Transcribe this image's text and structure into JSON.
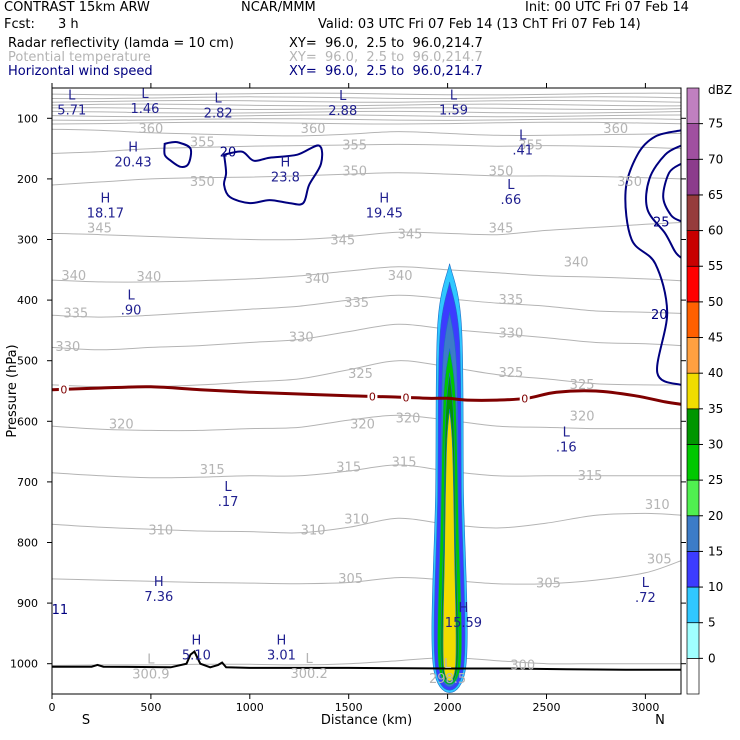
{
  "header": {
    "model": "CONTRAST 15km ARW",
    "org": "NCAR/MMM",
    "init": "Init: 00 UTC Fri 07 Feb 14",
    "fcst_label": "Fcst:",
    "fcst_value": "3 h",
    "valid": "Valid: 03 UTC Fri 07 Feb 14 (13 ChT Fri 07 Feb 14)",
    "fields": [
      {
        "name": "Radar reflectivity (lamda = 10 cm)",
        "xy": "XY=  96.0,  2.5 to  96.0,214.7",
        "color": "#000000"
      },
      {
        "name": "Potential temperature",
        "xy": "XY=  96.0,  2.5 to  96.0,214.7",
        "color": "#b4b4b4"
      },
      {
        "name": "Horizontal wind speed",
        "xy": "XY=  96.0,  2.5 to  96.0,214.7",
        "color": "#000080"
      }
    ]
  },
  "colors": {
    "theta": "#b4b4b4",
    "wind": "#00007f",
    "freezing": "#7f0000",
    "terrain": "#000000",
    "text_blue": "#1f1f8f"
  },
  "chart_data": {
    "type": "cross-section",
    "xlabel": "Distance (km)",
    "ylabel": "Pressure (hPa)",
    "xlim": [
      0,
      3180
    ],
    "ylim": [
      1050,
      50
    ],
    "x_ticks": [
      0,
      500,
      1000,
      1500,
      2000,
      2500,
      3000
    ],
    "y_ticks": [
      100,
      200,
      300,
      400,
      500,
      600,
      700,
      800,
      900,
      1000
    ],
    "end_labels": {
      "left": "S",
      "right": "N"
    },
    "colorbar": {
      "unit": "dBZ",
      "levels": [
        0,
        5,
        10,
        15,
        20,
        25,
        30,
        35,
        40,
        45,
        50,
        55,
        60,
        65,
        70,
        75
      ],
      "colors": [
        "#ffffff",
        "#a0ffff",
        "#30c8ff",
        "#3c3cff",
        "#3c7cc8",
        "#50f050",
        "#00c800",
        "#009600",
        "#f0dc00",
        "#ffa040",
        "#ff6000",
        "#ff0000",
        "#c80000",
        "#963c3c",
        "#8c3c8c",
        "#a050a0",
        "#c080c0"
      ]
    },
    "theta_contours": [
      {
        "value": 300,
        "p": [
          1003,
          1002,
          1002,
          1001,
          1001,
          1002,
          1000,
          995,
          990,
          995,
          1000,
          1000,
          1000,
          1000
        ]
      },
      {
        "value": 305,
        "p": [
          860,
          862,
          864,
          866,
          867,
          868,
          866,
          858,
          862,
          868,
          868,
          862,
          850,
          830
        ]
      },
      {
        "value": 310,
        "p": [
          770,
          775,
          778,
          781,
          782,
          784,
          775,
          760,
          770,
          776,
          768,
          755,
          752,
          755
        ]
      },
      {
        "value": 315,
        "p": [
          685,
          690,
          693,
          692,
          690,
          690,
          682,
          672,
          682,
          690,
          690,
          690,
          690,
          690
        ]
      },
      {
        "value": 320,
        "p": [
          608,
          613,
          615,
          615,
          612,
          610,
          598,
          590,
          598,
          608,
          610,
          612,
          612,
          612
        ]
      },
      {
        "value": 325,
        "p": [
          540,
          543,
          543,
          540,
          535,
          530,
          515,
          500,
          510,
          523,
          530,
          538,
          540,
          540
        ]
      },
      {
        "value": 330,
        "p": [
          478,
          482,
          478,
          475,
          470,
          465,
          452,
          440,
          448,
          455,
          462,
          470,
          472,
          475
        ]
      },
      {
        "value": 335,
        "p": [
          425,
          428,
          425,
          420,
          415,
          410,
          400,
          392,
          398,
          405,
          410,
          418,
          420,
          422
        ]
      },
      {
        "value": 340,
        "p": [
          367,
          370,
          370,
          368,
          365,
          360,
          352,
          345,
          350,
          355,
          360,
          362,
          365,
          368
        ]
      },
      {
        "value": 345,
        "p": [
          290,
          292,
          295,
          298,
          300,
          300,
          295,
          288,
          290,
          292,
          285,
          280,
          275,
          272
        ]
      },
      {
        "value": 350,
        "p": [
          210,
          205,
          200,
          198,
          197,
          195,
          192,
          190,
          192,
          195,
          195,
          196,
          198,
          200
        ]
      },
      {
        "value": 355,
        "p": [
          158,
          155,
          150,
          148,
          146,
          145,
          144,
          143,
          144,
          146,
          145,
          146,
          148,
          150
        ]
      },
      {
        "value": 360,
        "p": [
          118,
          120,
          124,
          126,
          128,
          129,
          126,
          122,
          125,
          128,
          128,
          127,
          126,
          125
        ]
      }
    ],
    "theta_grid_x": [
      0,
      250,
      500,
      750,
      1000,
      1250,
      1500,
      1750,
      2000,
      2250,
      2500,
      2750,
      3000,
      3180
    ],
    "stratosphere_levels": [
      60,
      66,
      72,
      78,
      84,
      90,
      96,
      102,
      108
    ],
    "theta_labels": [
      {
        "text": "360",
        "x": 500,
        "p": 118
      },
      {
        "text": "355",
        "x": 760,
        "p": 140
      },
      {
        "text": "360",
        "x": 1320,
        "p": 118
      },
      {
        "text": "355",
        "x": 1530,
        "p": 145
      },
      {
        "text": "355",
        "x": 2420,
        "p": 145
      },
      {
        "text": "360",
        "x": 2850,
        "p": 118
      },
      {
        "text": "350",
        "x": 760,
        "p": 205
      },
      {
        "text": "350",
        "x": 1530,
        "p": 188
      },
      {
        "text": "350",
        "x": 2270,
        "p": 188
      },
      {
        "text": "350",
        "x": 2920,
        "p": 205
      },
      {
        "text": "345",
        "x": 240,
        "p": 282
      },
      {
        "text": "345",
        "x": 1470,
        "p": 302
      },
      {
        "text": "345",
        "x": 1810,
        "p": 292
      },
      {
        "text": "345",
        "x": 2270,
        "p": 282
      },
      {
        "text": "340",
        "x": 110,
        "p": 360
      },
      {
        "text": "340",
        "x": 490,
        "p": 362
      },
      {
        "text": "340",
        "x": 1340,
        "p": 365
      },
      {
        "text": "340",
        "x": 1760,
        "p": 360
      },
      {
        "text": "340",
        "x": 2650,
        "p": 338
      },
      {
        "text": "335",
        "x": 120,
        "p": 422
      },
      {
        "text": "335",
        "x": 1540,
        "p": 405
      },
      {
        "text": "335",
        "x": 2320,
        "p": 400
      },
      {
        "text": "330",
        "x": 80,
        "p": 477
      },
      {
        "text": "330",
        "x": 1260,
        "p": 462
      },
      {
        "text": "330",
        "x": 2320,
        "p": 455
      },
      {
        "text": "325",
        "x": 1560,
        "p": 522
      },
      {
        "text": "325",
        "x": 2320,
        "p": 520
      },
      {
        "text": "325",
        "x": 2680,
        "p": 540
      },
      {
        "text": "320",
        "x": 350,
        "p": 605
      },
      {
        "text": "320",
        "x": 1570,
        "p": 605
      },
      {
        "text": "320",
        "x": 1800,
        "p": 595
      },
      {
        "text": "320",
        "x": 2680,
        "p": 592
      },
      {
        "text": "315",
        "x": 810,
        "p": 680
      },
      {
        "text": "315",
        "x": 1500,
        "p": 676
      },
      {
        "text": "315",
        "x": 1780,
        "p": 668
      },
      {
        "text": "315",
        "x": 2720,
        "p": 690
      },
      {
        "text": "310",
        "x": 550,
        "p": 780
      },
      {
        "text": "310",
        "x": 1320,
        "p": 780
      },
      {
        "text": "310",
        "x": 1540,
        "p": 762
      },
      {
        "text": "310",
        "x": 3060,
        "p": 738
      },
      {
        "text": "305",
        "x": 1510,
        "p": 860
      },
      {
        "text": "305",
        "x": 2510,
        "p": 868
      },
      {
        "text": "305",
        "x": 3070,
        "p": 828
      },
      {
        "text": "300",
        "x": 2380,
        "p": 1003
      }
    ],
    "wind_labels": [
      {
        "text": "20",
        "x": 890,
        "p": 155
      },
      {
        "text": "25",
        "x": 3080,
        "p": 270
      },
      {
        "text": "20",
        "x": 3070,
        "p": 423
      },
      {
        "text": "11",
        "x": 40,
        "p": 910
      }
    ],
    "freezing_level": {
      "label": "0",
      "x": [
        0,
        250,
        500,
        750,
        1000,
        1250,
        1500,
        1750,
        1900,
        2000,
        2100,
        2250,
        2400,
        2550,
        2750,
        2950,
        3100,
        3180
      ],
      "p": [
        548,
        545,
        543,
        548,
        552,
        555,
        558,
        560,
        562,
        562,
        565,
        565,
        562,
        552,
        550,
        558,
        568,
        572
      ],
      "label_x": [
        60,
        1620,
        1790,
        2390
      ]
    },
    "terrain": {
      "x": [
        0,
        200,
        230,
        260,
        600,
        680,
        700,
        720,
        750,
        800,
        840,
        860,
        880,
        1000,
        1500,
        2000,
        2300,
        2600,
        2900,
        3180
      ],
      "p": [
        1005,
        1005,
        1002,
        1005,
        1006,
        1000,
        985,
        980,
        1000,
        1006,
        1002,
        998,
        1006,
        1007,
        1007,
        1008,
        1008,
        1009,
        1010,
        1010
      ]
    },
    "pressure_centers": [
      {
        "type": "L",
        "value": "5.71",
        "x": 100,
        "p": 72
      },
      {
        "type": "L",
        "value": "1.46",
        "x": 470,
        "p": 70
      },
      {
        "type": "L",
        "value": "2.82",
        "x": 840,
        "p": 77
      },
      {
        "type": "L",
        "value": "2.88",
        "x": 1470,
        "p": 73
      },
      {
        "type": "L",
        "value": "1.59",
        "x": 2030,
        "p": 72
      },
      {
        "type": "L",
        "value": ".41",
        "x": 2380,
        "p": 138
      },
      {
        "type": "H",
        "value": "20.43",
        "x": 410,
        "p": 158
      },
      {
        "type": "H",
        "value": "23.8",
        "x": 1180,
        "p": 183
      },
      {
        "type": "L",
        "value": ".66",
        "x": 2320,
        "p": 220
      },
      {
        "type": "H",
        "value": "18.17",
        "x": 270,
        "p": 242
      },
      {
        "type": "H",
        "value": "19.45",
        "x": 1680,
        "p": 242
      },
      {
        "type": "L",
        "value": ".90",
        "x": 400,
        "p": 402
      },
      {
        "type": "L",
        "value": ".16",
        "x": 2600,
        "p": 628
      },
      {
        "type": "L",
        "value": ".17",
        "x": 890,
        "p": 718
      },
      {
        "type": "H",
        "value": "7.36",
        "x": 540,
        "p": 875
      },
      {
        "type": "L",
        "value": ".72",
        "x": 3000,
        "p": 877
      },
      {
        "type": "H",
        "value": "15.59",
        "x": 2080,
        "p": 918
      },
      {
        "type": "H",
        "value": "5.10",
        "x": 730,
        "p": 972
      },
      {
        "type": "H",
        "value": "3.01",
        "x": 1160,
        "p": 972
      },
      {
        "type": "L",
        "value": "300.9",
        "x": 500,
        "p": 1003,
        "muted": true
      },
      {
        "type": "L",
        "value": "300.2",
        "x": 1300,
        "p": 1002,
        "muted": true
      },
      {
        "type": "L",
        "value": "298.5",
        "x": 2000,
        "p": 1010,
        "muted": true
      }
    ],
    "reflectivity_core": {
      "center_x": 2010,
      "layers": [
        {
          "dbz": 5,
          "halfwidth": [
            60,
            60,
            70,
            80
          ],
          "ptop": 340,
          "pbot": 1010
        },
        {
          "dbz": 10,
          "halfwidth": [
            40,
            50,
            60,
            70
          ],
          "ptop": 370,
          "pbot": 1008
        },
        {
          "dbz": 15,
          "halfwidth": [
            25,
            35,
            45,
            55
          ],
          "ptop": 420,
          "pbot": 1005
        },
        {
          "dbz": 25,
          "halfwidth": [
            15,
            30,
            45,
            55
          ],
          "ptop": 480,
          "pbot": 1005
        },
        {
          "dbz": 30,
          "halfwidth": [
            8,
            20,
            30,
            40
          ],
          "ptop": 520,
          "pbot": 1005
        },
        {
          "dbz": 35,
          "halfwidth": [
            5,
            15,
            25,
            30
          ],
          "ptop": 580,
          "pbot": 1005
        }
      ]
    }
  }
}
